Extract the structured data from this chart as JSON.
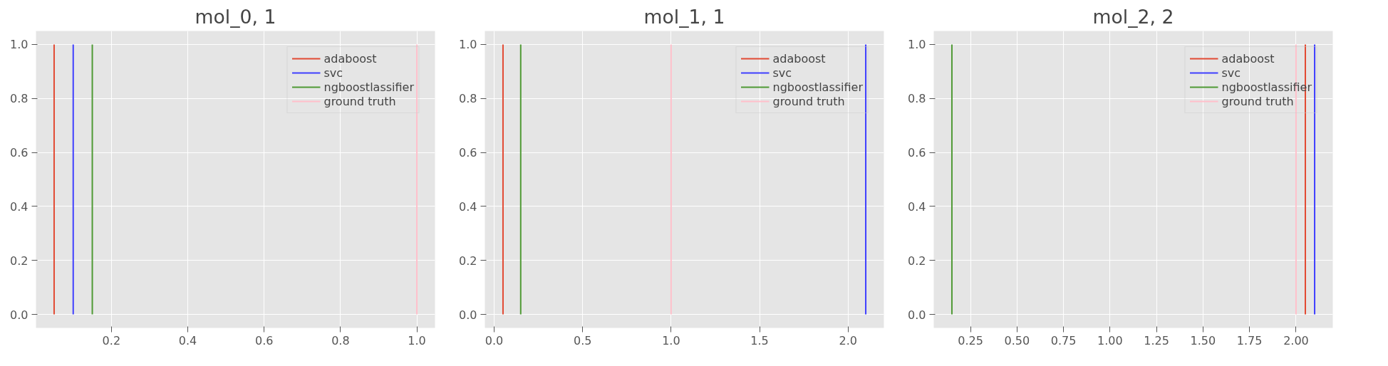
{
  "chart_data": [
    {
      "type": "line",
      "title": "mol_0, 1",
      "xlim": [
        0.0025,
        1.0475
      ],
      "ylim": [
        -0.05,
        1.05
      ],
      "xticks": [
        {
          "value": 0.2,
          "label": "0.2"
        },
        {
          "value": 0.4,
          "label": "0.4"
        },
        {
          "value": 0.6,
          "label": "0.6"
        },
        {
          "value": 0.8,
          "label": "0.8"
        },
        {
          "value": 1.0,
          "label": "1.0"
        }
      ],
      "yticks": [
        {
          "value": 0,
          "label": "0.0"
        },
        {
          "value": 0.2,
          "label": "0.2"
        },
        {
          "value": 0.4,
          "label": "0.4"
        },
        {
          "value": 0.6,
          "label": "0.6"
        },
        {
          "value": 0.8,
          "label": "0.8"
        },
        {
          "value": 1.0,
          "label": "1.0"
        }
      ],
      "grid": true,
      "legend": "top right",
      "series": [
        {
          "name": "adaboost",
          "color": "#e24a33",
          "x": [
            0.05,
            0.05
          ],
          "values": [
            0,
            1
          ]
        },
        {
          "name": "svc",
          "color": "#3f3fff",
          "x": [
            0.1,
            0.1
          ],
          "values": [
            0,
            1
          ]
        },
        {
          "name": "ngboostlassifier",
          "color": "#4f9a35",
          "x": [
            0.15,
            0.15
          ],
          "values": [
            0,
            1
          ]
        },
        {
          "name": "ground truth",
          "color": "#ffc0cb",
          "x": [
            1.0,
            1.0
          ],
          "values": [
            0,
            1
          ]
        }
      ]
    },
    {
      "type": "line",
      "title": "mol_1, 1",
      "xlim": [
        -0.0525,
        2.2025
      ],
      "ylim": [
        -0.05,
        1.05
      ],
      "xticks": [
        {
          "value": 0,
          "label": "0.0"
        },
        {
          "value": 0.5,
          "label": "0.5"
        },
        {
          "value": 1.0,
          "label": "1.0"
        },
        {
          "value": 1.5,
          "label": "1.5"
        },
        {
          "value": 2.0,
          "label": "2.0"
        }
      ],
      "yticks": [
        {
          "value": 0,
          "label": "0.0"
        },
        {
          "value": 0.2,
          "label": "0.2"
        },
        {
          "value": 0.4,
          "label": "0.4"
        },
        {
          "value": 0.6,
          "label": "0.6"
        },
        {
          "value": 0.8,
          "label": "0.8"
        },
        {
          "value": 1.0,
          "label": "1.0"
        }
      ],
      "grid": true,
      "legend": "top right",
      "series": [
        {
          "name": "adaboost",
          "color": "#e24a33",
          "x": [
            0.05,
            0.05
          ],
          "values": [
            0,
            1
          ]
        },
        {
          "name": "svc",
          "color": "#3f3fff",
          "x": [
            2.1,
            2.1
          ],
          "values": [
            0,
            1
          ]
        },
        {
          "name": "ngboostlassifier",
          "color": "#4f9a35",
          "x": [
            0.15,
            0.15
          ],
          "values": [
            0,
            1
          ]
        },
        {
          "name": "ground truth",
          "color": "#ffc0cb",
          "x": [
            1.0,
            1.0
          ],
          "values": [
            0,
            1
          ]
        }
      ]
    },
    {
      "type": "line",
      "title": "mol_2, 2",
      "xlim": [
        0.0525,
        2.1975
      ],
      "ylim": [
        -0.05,
        1.05
      ],
      "xticks": [
        {
          "value": 0.25,
          "label": "0.25"
        },
        {
          "value": 0.5,
          "label": "0.50"
        },
        {
          "value": 0.75,
          "label": "0.75"
        },
        {
          "value": 1.0,
          "label": "1.00"
        },
        {
          "value": 1.25,
          "label": "1.25"
        },
        {
          "value": 1.5,
          "label": "1.50"
        },
        {
          "value": 1.75,
          "label": "1.75"
        },
        {
          "value": 2.0,
          "label": "2.00"
        }
      ],
      "yticks": [
        {
          "value": 0,
          "label": "0.0"
        },
        {
          "value": 0.2,
          "label": "0.2"
        },
        {
          "value": 0.4,
          "label": "0.4"
        },
        {
          "value": 0.6,
          "label": "0.6"
        },
        {
          "value": 0.8,
          "label": "0.8"
        },
        {
          "value": 1.0,
          "label": "1.0"
        }
      ],
      "grid": true,
      "legend": "top right",
      "series": [
        {
          "name": "adaboost",
          "color": "#e24a33",
          "x": [
            2.05,
            2.05
          ],
          "values": [
            0,
            1
          ]
        },
        {
          "name": "svc",
          "color": "#3f3fff",
          "x": [
            2.1,
            2.1
          ],
          "values": [
            0,
            1
          ]
        },
        {
          "name": "ngboostlassifier",
          "color": "#4f9a35",
          "x": [
            0.15,
            0.15
          ],
          "values": [
            0,
            1
          ]
        },
        {
          "name": "ground truth",
          "color": "#ffc0cb",
          "x": [
            2.0,
            2.0
          ],
          "values": [
            0,
            1
          ]
        }
      ]
    }
  ]
}
